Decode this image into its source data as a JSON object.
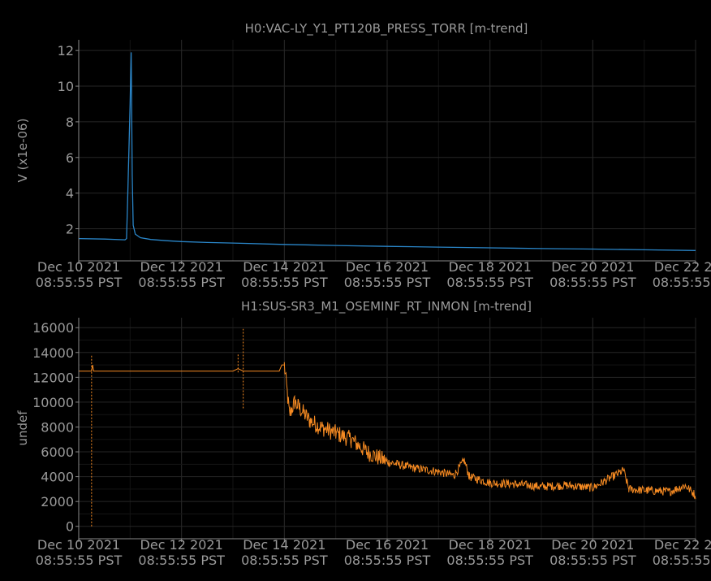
{
  "chart_data": [
    {
      "type": "line",
      "title": "H0:VAC-LY_Y1_PT120B_PRESS_TORR [m-trend]",
      "ylabel": "V (x1e-06)",
      "xlabel": "",
      "ylim": [
        0.2,
        12.6
      ],
      "yticks": [
        2,
        4,
        6,
        8,
        10,
        12
      ],
      "xlim": [
        0,
        12
      ],
      "xticks": [
        0,
        2,
        4,
        6,
        8,
        10,
        12
      ],
      "xtick_labels": [
        [
          "Dec 10 2021",
          "08:55:55 PST"
        ],
        [
          "Dec 12 2021",
          "08:55:55 PST"
        ],
        [
          "Dec 14 2021",
          "08:55:55 PST"
        ],
        [
          "Dec 16 2021",
          "08:55:55 PST"
        ],
        [
          "Dec 18 2021",
          "08:55:55 PST"
        ],
        [
          "Dec 20 2021",
          "08:55:55 PST"
        ],
        [
          "Dec 22 2021",
          "08:55:55 PST"
        ]
      ],
      "grid": true,
      "color": "#2a86c9",
      "series": [
        {
          "x": [
            0,
            0.5,
            0.9,
            0.93,
            0.95,
            1.0,
            1.02,
            1.04,
            1.06,
            1.1,
            1.2,
            1.4,
            1.7,
            2.0,
            2.5,
            3,
            4,
            5,
            6,
            7,
            8,
            9,
            10,
            11,
            12
          ],
          "y": [
            1.45,
            1.42,
            1.38,
            1.45,
            3.5,
            9.0,
            11.9,
            5.0,
            2.2,
            1.7,
            1.5,
            1.4,
            1.33,
            1.28,
            1.23,
            1.2,
            1.12,
            1.06,
            1.01,
            0.97,
            0.93,
            0.89,
            0.86,
            0.82,
            0.78
          ]
        }
      ]
    },
    {
      "type": "line",
      "title": "H1:SUS-SR3_M1_OSEMINF_RT_INMON [m-trend]",
      "ylabel": "undef",
      "xlabel": "",
      "ylim": [
        -1000,
        16800
      ],
      "yticks": [
        0,
        2000,
        4000,
        6000,
        8000,
        10000,
        12000,
        14000,
        16000
      ],
      "xlim": [
        0,
        12
      ],
      "xticks": [
        0,
        2,
        4,
        6,
        8,
        10,
        12
      ],
      "xtick_labels": [
        [
          "Dec 10 2021",
          "08:55:55 PST"
        ],
        [
          "Dec 12 2021",
          "08:55:55 PST"
        ],
        [
          "Dec 14 2021",
          "08:55:55 PST"
        ],
        [
          "Dec 16 2021",
          "08:55:55 PST"
        ],
        [
          "Dec 18 2021",
          "08:55:55 PST"
        ],
        [
          "Dec 20 2021",
          "08:55:55 PST"
        ],
        [
          "Dec 22 2021",
          "08:55:55 PST"
        ]
      ],
      "grid": true,
      "color": "#f58a22",
      "series": [
        {
          "x": [
            0,
            0.2,
            0.25,
            0.27,
            0.29,
            1,
            2,
            3,
            3.1,
            3.2,
            3.9,
            3.95,
            4.0,
            4.1,
            4.2,
            4.3,
            4.5,
            4.7,
            5.0,
            5.3,
            5.6,
            6.0,
            6.5,
            7.0,
            7.3,
            7.5,
            7.6,
            8.0,
            8.5,
            9.0,
            9.5,
            10.0,
            10.6,
            10.7,
            11.0,
            11.5,
            11.8,
            12.0
          ],
          "y": [
            12500,
            12500,
            12500,
            13000,
            12500,
            12500,
            12500,
            12500,
            12700,
            12500,
            12500,
            13000,
            13000,
            9000,
            10000,
            9500,
            8500,
            8000,
            7500,
            7000,
            6000,
            5200,
            4700,
            4400,
            4100,
            5300,
            4000,
            3500,
            3400,
            3200,
            3300,
            3100,
            4500,
            3000,
            2900,
            2800,
            3300,
            2500
          ]
        }
      ],
      "spikes": [
        {
          "x": 0.25,
          "low": 0,
          "high": 13800
        },
        {
          "x": 3.1,
          "low": 12400,
          "high": 13900
        },
        {
          "x": 3.2,
          "low": 9500,
          "high": 15900
        }
      ]
    }
  ]
}
